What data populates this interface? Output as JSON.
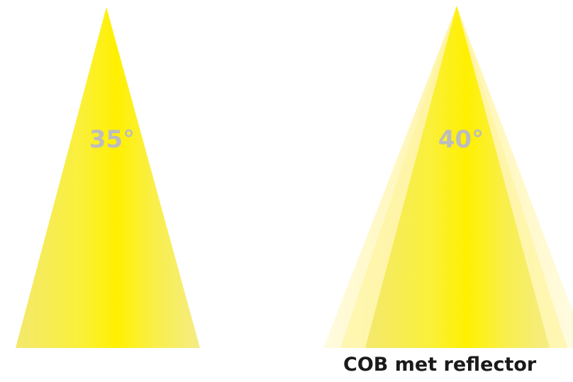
{
  "beams": [
    {
      "angle_label": "35°"
    },
    {
      "angle_label": "40°"
    }
  ],
  "caption": "COB met reflector",
  "colors": {
    "beam_core": "#ffee00",
    "beam_edge": "#f6ec6a",
    "beam_outer_halo": "#fff6b0",
    "label": "#bdbdbd",
    "caption": "#1a1a1a"
  }
}
